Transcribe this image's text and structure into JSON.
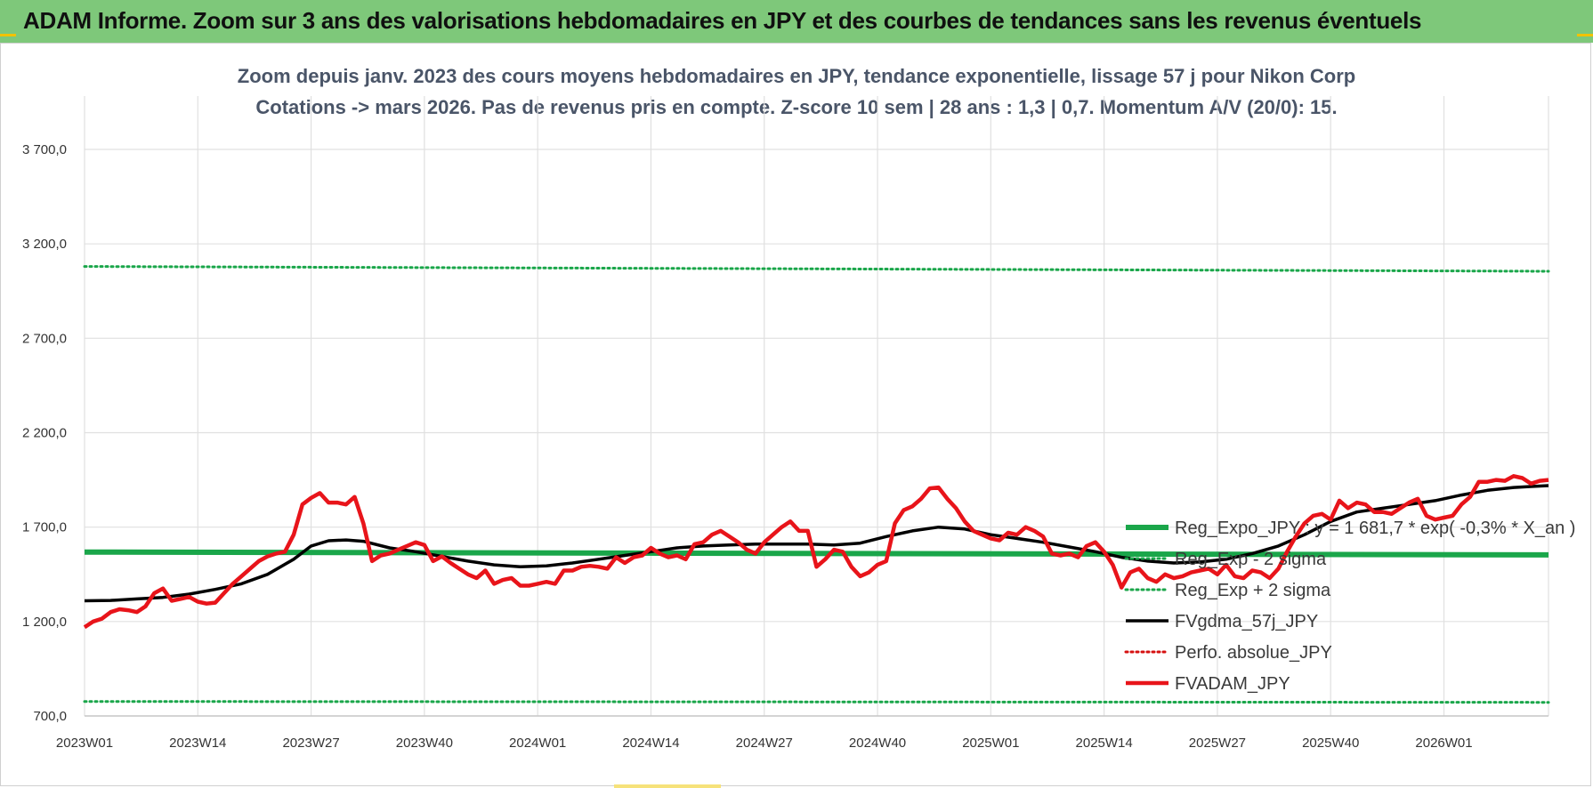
{
  "header": {
    "title": "ADAM Informe. Zoom sur 3 ans des valorisations hebdomadaires en JPY et des courbes de tendances sans les revenus éventuels"
  },
  "colors": {
    "header_bg": "#7ec87a",
    "reg_expo": "#1aa64a",
    "sigma_band": "#1aa64a",
    "fvgdma": "#000000",
    "perfo": "#d61010",
    "fvadam": "#e8141a",
    "grid": "#e0e0e0"
  },
  "chart_data": {
    "type": "line",
    "title_lines": [
      "Zoom depuis janv. 2023 des cours moyens hebdomadaires en JPY, tendance exponentielle, lissage 57 j pour Nikon Corp",
      "Cotations -> mars 2026. Pas de revenus pris en compte. Z-score 10 sem | 28 ans : 1,3 | 0,7. Momentum A/V (20/0): 15."
    ],
    "ylim": [
      700,
      3700
    ],
    "y_ticks": [
      "700,0",
      "1 200,0",
      "1 700,0",
      "2 200,0",
      "2 700,0",
      "3 200,0",
      "3 700,0"
    ],
    "y_tick_values": [
      700,
      1200,
      1700,
      2200,
      2700,
      3200,
      3700
    ],
    "x_ticks": [
      "2023W01",
      "2023W14",
      "2023W27",
      "2023W40",
      "2024W01",
      "2024W14",
      "2024W27",
      "2024W40",
      "2025W01",
      "2025W14",
      "2025W27",
      "2025W40",
      "2026W01"
    ],
    "x_tick_weeks": [
      0,
      13,
      26,
      39,
      52,
      65,
      78,
      91,
      104,
      117,
      130,
      143,
      156
    ],
    "x_max_week": 168,
    "legend_position": "right",
    "series": [
      {
        "name": "Reg_Expo_JPY : y = 1 681,7 * exp( -0,3% * X_an )",
        "style": "thick",
        "points": [
          [
            0,
            1568
          ],
          [
            168,
            1553
          ]
        ]
      },
      {
        "name": "Reg_Exp - 2 sigma",
        "style": "dotted",
        "points": [
          [
            0,
            777
          ],
          [
            168,
            772
          ]
        ]
      },
      {
        "name": "Reg_Exp + 2 sigma",
        "style": "dotted",
        "points": [
          [
            0,
            3080
          ],
          [
            168,
            3055
          ]
        ]
      },
      {
        "name": "FVgdma_57j_JPY",
        "style": "solid",
        "points": [
          [
            0,
            1310
          ],
          [
            3,
            1312
          ],
          [
            6,
            1320
          ],
          [
            9,
            1328
          ],
          [
            12,
            1345
          ],
          [
            15,
            1370
          ],
          [
            18,
            1400
          ],
          [
            21,
            1450
          ],
          [
            24,
            1530
          ],
          [
            26,
            1600
          ],
          [
            28,
            1628
          ],
          [
            30,
            1632
          ],
          [
            32,
            1625
          ],
          [
            35,
            1590
          ],
          [
            38,
            1570
          ],
          [
            41,
            1545
          ],
          [
            44,
            1520
          ],
          [
            47,
            1500
          ],
          [
            50,
            1490
          ],
          [
            53,
            1495
          ],
          [
            56,
            1510
          ],
          [
            59,
            1530
          ],
          [
            62,
            1550
          ],
          [
            65,
            1570
          ],
          [
            68,
            1590
          ],
          [
            71,
            1600
          ],
          [
            74,
            1605
          ],
          [
            77,
            1610
          ],
          [
            80,
            1610
          ],
          [
            83,
            1610
          ],
          [
            86,
            1605
          ],
          [
            89,
            1615
          ],
          [
            92,
            1650
          ],
          [
            95,
            1680
          ],
          [
            98,
            1700
          ],
          [
            101,
            1690
          ],
          [
            104,
            1660
          ],
          [
            107,
            1640
          ],
          [
            110,
            1620
          ],
          [
            113,
            1595
          ],
          [
            116,
            1570
          ],
          [
            119,
            1540
          ],
          [
            122,
            1520
          ],
          [
            125,
            1510
          ],
          [
            128,
            1515
          ],
          [
            131,
            1530
          ],
          [
            134,
            1560
          ],
          [
            137,
            1600
          ],
          [
            140,
            1660
          ],
          [
            143,
            1730
          ],
          [
            146,
            1780
          ],
          [
            149,
            1800
          ],
          [
            152,
            1820
          ],
          [
            155,
            1840
          ],
          [
            158,
            1870
          ],
          [
            161,
            1895
          ],
          [
            164,
            1910
          ],
          [
            166,
            1915
          ],
          [
            168,
            1920
          ]
        ]
      },
      {
        "name": "Perfo. absolue_JPY",
        "style": "dotted",
        "points": []
      },
      {
        "name": "FVADAM_JPY",
        "style": "thick",
        "points": [
          [
            0,
            1170
          ],
          [
            1,
            1200
          ],
          [
            2,
            1215
          ],
          [
            3,
            1250
          ],
          [
            4,
            1265
          ],
          [
            5,
            1260
          ],
          [
            6,
            1250
          ],
          [
            7,
            1280
          ],
          [
            8,
            1350
          ],
          [
            9,
            1375
          ],
          [
            10,
            1310
          ],
          [
            11,
            1320
          ],
          [
            12,
            1330
          ],
          [
            13,
            1305
          ],
          [
            14,
            1295
          ],
          [
            15,
            1300
          ],
          [
            16,
            1350
          ],
          [
            17,
            1400
          ],
          [
            18,
            1440
          ],
          [
            19,
            1480
          ],
          [
            20,
            1520
          ],
          [
            21,
            1545
          ],
          [
            22,
            1560
          ],
          [
            23,
            1570
          ],
          [
            24,
            1660
          ],
          [
            25,
            1820
          ],
          [
            26,
            1855
          ],
          [
            27,
            1880
          ],
          [
            28,
            1830
          ],
          [
            29,
            1830
          ],
          [
            30,
            1820
          ],
          [
            31,
            1860
          ],
          [
            32,
            1720
          ],
          [
            33,
            1520
          ],
          [
            34,
            1550
          ],
          [
            35,
            1560
          ],
          [
            36,
            1580
          ],
          [
            37,
            1600
          ],
          [
            38,
            1620
          ],
          [
            39,
            1605
          ],
          [
            40,
            1520
          ],
          [
            41,
            1545
          ],
          [
            42,
            1510
          ],
          [
            43,
            1480
          ],
          [
            44,
            1450
          ],
          [
            45,
            1430
          ],
          [
            46,
            1470
          ],
          [
            47,
            1400
          ],
          [
            48,
            1420
          ],
          [
            49,
            1430
          ],
          [
            50,
            1390
          ],
          [
            51,
            1390
          ],
          [
            52,
            1400
          ],
          [
            53,
            1410
          ],
          [
            54,
            1400
          ],
          [
            55,
            1470
          ],
          [
            56,
            1470
          ],
          [
            57,
            1490
          ],
          [
            58,
            1495
          ],
          [
            59,
            1490
          ],
          [
            60,
            1480
          ],
          [
            61,
            1540
          ],
          [
            62,
            1510
          ],
          [
            63,
            1540
          ],
          [
            64,
            1550
          ],
          [
            65,
            1590
          ],
          [
            66,
            1560
          ],
          [
            67,
            1540
          ],
          [
            68,
            1550
          ],
          [
            69,
            1530
          ],
          [
            70,
            1610
          ],
          [
            71,
            1620
          ],
          [
            72,
            1660
          ],
          [
            73,
            1680
          ],
          [
            74,
            1650
          ],
          [
            75,
            1620
          ],
          [
            76,
            1580
          ],
          [
            77,
            1560
          ],
          [
            78,
            1620
          ],
          [
            79,
            1660
          ],
          [
            80,
            1700
          ],
          [
            81,
            1730
          ],
          [
            82,
            1680
          ],
          [
            83,
            1680
          ],
          [
            84,
            1490
          ],
          [
            85,
            1530
          ],
          [
            86,
            1580
          ],
          [
            87,
            1570
          ],
          [
            88,
            1490
          ],
          [
            89,
            1440
          ],
          [
            90,
            1460
          ],
          [
            91,
            1500
          ],
          [
            92,
            1520
          ],
          [
            93,
            1720
          ],
          [
            94,
            1790
          ],
          [
            95,
            1810
          ],
          [
            96,
            1850
          ],
          [
            97,
            1905
          ],
          [
            98,
            1910
          ],
          [
            99,
            1850
          ],
          [
            100,
            1800
          ],
          [
            101,
            1730
          ],
          [
            102,
            1680
          ],
          [
            103,
            1660
          ],
          [
            104,
            1640
          ],
          [
            105,
            1630
          ],
          [
            106,
            1670
          ],
          [
            107,
            1660
          ],
          [
            108,
            1700
          ],
          [
            109,
            1680
          ],
          [
            110,
            1650
          ],
          [
            111,
            1560
          ],
          [
            112,
            1550
          ],
          [
            113,
            1560
          ],
          [
            114,
            1540
          ],
          [
            115,
            1600
          ],
          [
            116,
            1620
          ],
          [
            117,
            1570
          ],
          [
            118,
            1500
          ],
          [
            119,
            1380
          ],
          [
            120,
            1460
          ],
          [
            121,
            1480
          ],
          [
            122,
            1430
          ],
          [
            123,
            1410
          ],
          [
            124,
            1450
          ],
          [
            125,
            1430
          ],
          [
            126,
            1440
          ],
          [
            127,
            1460
          ],
          [
            128,
            1470
          ],
          [
            129,
            1480
          ],
          [
            130,
            1450
          ],
          [
            131,
            1500
          ],
          [
            132,
            1440
          ],
          [
            133,
            1430
          ],
          [
            134,
            1470
          ],
          [
            135,
            1460
          ],
          [
            136,
            1430
          ],
          [
            137,
            1480
          ],
          [
            138,
            1570
          ],
          [
            139,
            1650
          ],
          [
            140,
            1720
          ],
          [
            141,
            1760
          ],
          [
            142,
            1770
          ],
          [
            143,
            1740
          ],
          [
            144,
            1840
          ],
          [
            145,
            1800
          ],
          [
            146,
            1830
          ],
          [
            147,
            1820
          ],
          [
            148,
            1780
          ],
          [
            149,
            1780
          ],
          [
            150,
            1770
          ],
          [
            151,
            1800
          ],
          [
            152,
            1830
          ],
          [
            153,
            1850
          ],
          [
            154,
            1760
          ],
          [
            155,
            1740
          ],
          [
            156,
            1750
          ],
          [
            157,
            1760
          ],
          [
            158,
            1820
          ],
          [
            159,
            1860
          ],
          [
            160,
            1940
          ],
          [
            161,
            1940
          ],
          [
            162,
            1950
          ],
          [
            163,
            1945
          ],
          [
            164,
            1970
          ],
          [
            165,
            1960
          ],
          [
            166,
            1930
          ],
          [
            167,
            1945
          ],
          [
            168,
            1950
          ]
        ]
      }
    ]
  }
}
